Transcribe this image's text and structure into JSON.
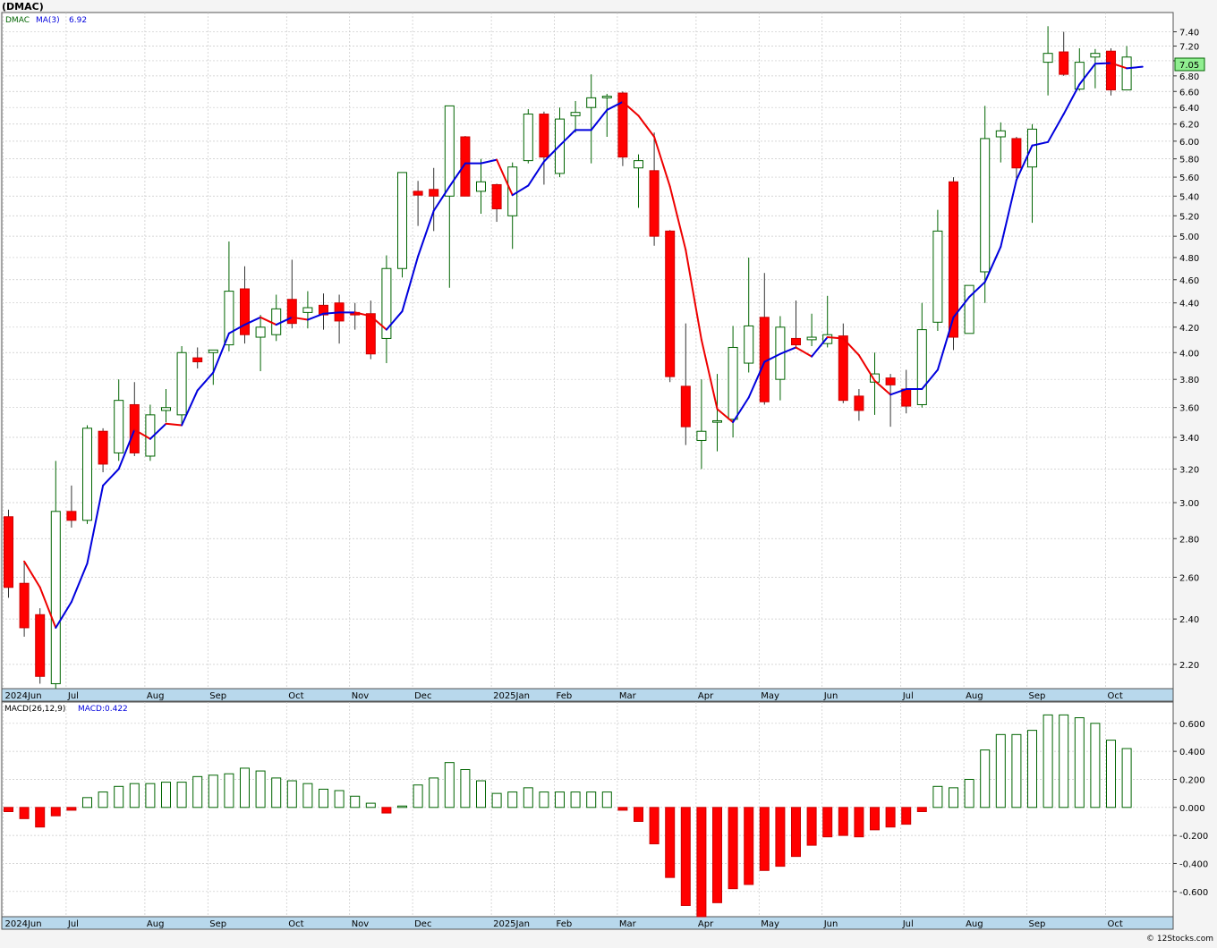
{
  "header": {
    "title": "(DMAC)"
  },
  "price_panel": {
    "legend_symbol": "DMAC",
    "legend_ma_label": "MA(3)",
    "legend_ma_value": "6.92",
    "last_price_label": "7.05"
  },
  "macd_panel": {
    "legend_label": "MACD(26,12,9)",
    "legend_value": "MACD:0.422"
  },
  "footer": {
    "credit": "© 12Stocks.com"
  },
  "colors": {
    "up_candle": "#ffffff",
    "up_border": "#006400",
    "down_candle": "#ff0000",
    "ma_up": "#0000dd",
    "ma_down": "#ee0000",
    "macd_pos": "#006400",
    "macd_neg": "#ff0000",
    "axis_band": "#b8d8ec",
    "grid": "#c8c8c8"
  },
  "chart_data": [
    {
      "type": "candlestick",
      "title": "(DMAC)",
      "scale": "log",
      "ylim": [
        2.1,
        7.6
      ],
      "y_ticks": [
        "2.20",
        "2.40",
        "2.60",
        "2.80",
        "3.00",
        "3.20",
        "3.40",
        "3.60",
        "3.80",
        "4.00",
        "4.20",
        "4.40",
        "4.60",
        "4.80",
        "5.00",
        "5.20",
        "5.40",
        "5.60",
        "5.80",
        "6.00",
        "6.20",
        "6.40",
        "6.60",
        "6.80",
        "7.00",
        "7.20",
        "7.40"
      ],
      "x_labels": [
        {
          "label": "2024Jun",
          "week": 0
        },
        {
          "label": "Jul",
          "week": 4
        },
        {
          "label": "Aug",
          "week": 9
        },
        {
          "label": "Sep",
          "week": 13
        },
        {
          "label": "Oct",
          "week": 18
        },
        {
          "label": "Nov",
          "week": 22
        },
        {
          "label": "Dec",
          "week": 26
        },
        {
          "label": "2025Jan",
          "week": 31
        },
        {
          "label": "Feb",
          "week": 35
        },
        {
          "label": "Mar",
          "week": 39
        },
        {
          "label": "Apr",
          "week": 44
        },
        {
          "label": "May",
          "week": 48
        },
        {
          "label": "Jun",
          "week": 52
        },
        {
          "label": "Jul",
          "week": 57
        },
        {
          "label": "Aug",
          "week": 61
        },
        {
          "label": "Sep",
          "week": 65
        },
        {
          "label": "Oct",
          "week": 70
        }
      ],
      "candles": [
        {
          "o": 2.92,
          "h": 2.96,
          "l": 2.5,
          "c": 2.55
        },
        {
          "o": 2.57,
          "h": 2.68,
          "l": 2.32,
          "c": 2.36
        },
        {
          "o": 2.42,
          "h": 2.45,
          "l": 2.12,
          "c": 2.15
        },
        {
          "o": 2.12,
          "h": 3.25,
          "l": 2.08,
          "c": 2.95
        },
        {
          "o": 2.95,
          "h": 3.1,
          "l": 2.86,
          "c": 2.9
        },
        {
          "o": 2.9,
          "h": 3.48,
          "l": 2.88,
          "c": 3.46
        },
        {
          "o": 3.44,
          "h": 3.46,
          "l": 3.18,
          "c": 3.23
        },
        {
          "o": 3.3,
          "h": 3.8,
          "l": 3.25,
          "c": 3.65
        },
        {
          "o": 3.62,
          "h": 3.78,
          "l": 3.28,
          "c": 3.3
        },
        {
          "o": 3.28,
          "h": 3.62,
          "l": 3.25,
          "c": 3.55
        },
        {
          "o": 3.58,
          "h": 3.73,
          "l": 3.5,
          "c": 3.6
        },
        {
          "o": 3.55,
          "h": 4.05,
          "l": 3.48,
          "c": 4.0
        },
        {
          "o": 3.96,
          "h": 4.04,
          "l": 3.88,
          "c": 3.93
        },
        {
          "o": 4.0,
          "h": 4.02,
          "l": 3.76,
          "c": 4.02
        },
        {
          "o": 4.06,
          "h": 4.95,
          "l": 4.01,
          "c": 4.5
        },
        {
          "o": 4.52,
          "h": 4.72,
          "l": 4.07,
          "c": 4.14
        },
        {
          "o": 4.12,
          "h": 4.3,
          "l": 3.86,
          "c": 4.2
        },
        {
          "o": 4.14,
          "h": 4.47,
          "l": 4.09,
          "c": 4.35
        },
        {
          "o": 4.43,
          "h": 4.78,
          "l": 4.19,
          "c": 4.23
        },
        {
          "o": 4.32,
          "h": 4.5,
          "l": 4.19,
          "c": 4.36
        },
        {
          "o": 4.38,
          "h": 4.48,
          "l": 4.18,
          "c": 4.3
        },
        {
          "o": 4.4,
          "h": 4.47,
          "l": 4.07,
          "c": 4.25
        },
        {
          "o": 4.32,
          "h": 4.4,
          "l": 4.18,
          "c": 4.3
        },
        {
          "o": 4.31,
          "h": 4.42,
          "l": 3.95,
          "c": 3.99
        },
        {
          "o": 4.11,
          "h": 4.82,
          "l": 3.92,
          "c": 4.7
        },
        {
          "o": 4.7,
          "h": 5.65,
          "l": 4.62,
          "c": 5.65
        },
        {
          "o": 5.45,
          "h": 5.56,
          "l": 5.1,
          "c": 5.41
        },
        {
          "o": 5.47,
          "h": 5.7,
          "l": 5.05,
          "c": 5.4
        },
        {
          "o": 5.4,
          "h": 6.42,
          "l": 4.53,
          "c": 6.42
        },
        {
          "o": 6.05,
          "h": 6.06,
          "l": 5.4,
          "c": 5.4
        },
        {
          "o": 5.45,
          "h": 5.8,
          "l": 5.22,
          "c": 5.55
        },
        {
          "o": 5.52,
          "h": 5.53,
          "l": 5.14,
          "c": 5.27
        },
        {
          "o": 5.2,
          "h": 5.76,
          "l": 4.88,
          "c": 5.71
        },
        {
          "o": 5.78,
          "h": 6.38,
          "l": 5.75,
          "c": 6.32
        },
        {
          "o": 6.32,
          "h": 6.35,
          "l": 5.52,
          "c": 5.82
        },
        {
          "o": 5.64,
          "h": 6.4,
          "l": 5.6,
          "c": 6.26
        },
        {
          "o": 6.3,
          "h": 6.48,
          "l": 6.1,
          "c": 6.34
        },
        {
          "o": 6.4,
          "h": 6.82,
          "l": 5.75,
          "c": 6.52
        },
        {
          "o": 6.52,
          "h": 6.57,
          "l": 6.05,
          "c": 6.54
        },
        {
          "o": 6.58,
          "h": 6.6,
          "l": 5.72,
          "c": 5.82
        },
        {
          "o": 5.7,
          "h": 5.85,
          "l": 5.28,
          "c": 5.78
        },
        {
          "o": 5.67,
          "h": 6.1,
          "l": 4.91,
          "c": 5.0
        },
        {
          "o": 5.05,
          "h": 5.06,
          "l": 3.78,
          "c": 3.82
        },
        {
          "o": 3.75,
          "h": 4.23,
          "l": 3.35,
          "c": 3.47
        },
        {
          "o": 3.38,
          "h": 3.8,
          "l": 3.2,
          "c": 3.44
        },
        {
          "o": 3.5,
          "h": 3.84,
          "l": 3.31,
          "c": 3.51
        },
        {
          "o": 3.52,
          "h": 4.21,
          "l": 3.4,
          "c": 4.04
        },
        {
          "o": 3.92,
          "h": 4.8,
          "l": 3.85,
          "c": 4.21
        },
        {
          "o": 4.28,
          "h": 4.66,
          "l": 3.62,
          "c": 3.64
        },
        {
          "o": 3.8,
          "h": 4.29,
          "l": 3.65,
          "c": 4.2
        },
        {
          "o": 4.11,
          "h": 4.42,
          "l": 4.03,
          "c": 4.06
        },
        {
          "o": 4.1,
          "h": 4.31,
          "l": 4.05,
          "c": 4.12
        },
        {
          "o": 4.07,
          "h": 4.46,
          "l": 4.04,
          "c": 4.14
        },
        {
          "o": 4.13,
          "h": 4.23,
          "l": 3.63,
          "c": 3.65
        },
        {
          "o": 3.68,
          "h": 3.73,
          "l": 3.51,
          "c": 3.58
        },
        {
          "o": 3.78,
          "h": 4.0,
          "l": 3.55,
          "c": 3.84
        },
        {
          "o": 3.81,
          "h": 3.84,
          "l": 3.47,
          "c": 3.76
        },
        {
          "o": 3.73,
          "h": 3.87,
          "l": 3.56,
          "c": 3.61
        },
        {
          "o": 3.62,
          "h": 4.4,
          "l": 3.6,
          "c": 4.18
        },
        {
          "o": 4.24,
          "h": 5.26,
          "l": 4.17,
          "c": 5.05
        },
        {
          "o": 5.55,
          "h": 5.6,
          "l": 4.02,
          "c": 4.12
        },
        {
          "o": 4.15,
          "h": 4.55,
          "l": 4.15,
          "c": 4.55
        },
        {
          "o": 4.67,
          "h": 6.42,
          "l": 4.4,
          "c": 6.03
        },
        {
          "o": 6.05,
          "h": 6.22,
          "l": 5.76,
          "c": 6.12
        },
        {
          "o": 6.03,
          "h": 6.05,
          "l": 5.59,
          "c": 5.7
        },
        {
          "o": 5.71,
          "h": 6.2,
          "l": 5.13,
          "c": 6.14
        },
        {
          "o": 6.98,
          "h": 7.48,
          "l": 6.55,
          "c": 7.1
        },
        {
          "o": 7.12,
          "h": 7.4,
          "l": 6.8,
          "c": 6.82
        },
        {
          "o": 6.63,
          "h": 7.17,
          "l": 6.61,
          "c": 6.98
        },
        {
          "o": 7.05,
          "h": 7.16,
          "l": 6.64,
          "c": 7.1
        },
        {
          "o": 7.13,
          "h": 7.17,
          "l": 6.55,
          "c": 6.62
        },
        {
          "o": 6.62,
          "h": 7.2,
          "l": 6.63,
          "c": 7.05
        }
      ],
      "ma3": [
        2.68,
        2.55,
        2.36,
        2.48,
        2.67,
        3.1,
        3.2,
        3.45,
        3.39,
        3.49,
        3.48,
        3.72,
        3.85,
        4.15,
        4.22,
        4.28,
        4.22,
        4.28,
        4.26,
        4.31,
        4.32,
        4.32,
        4.29,
        4.18,
        4.33,
        4.81,
        5.25,
        5.5,
        5.75,
        5.75,
        5.79,
        5.41,
        5.51,
        5.77,
        5.95,
        6.13,
        6.13,
        6.37,
        6.47,
        6.3,
        6.05,
        5.5,
        4.87,
        4.1,
        3.59,
        3.5,
        3.67,
        3.93,
        3.99,
        4.04,
        3.97,
        4.12,
        4.11,
        3.98,
        3.79,
        3.69,
        3.73,
        3.73,
        3.87,
        4.28,
        4.45,
        4.58,
        4.9,
        5.57,
        5.95,
        5.99,
        6.32,
        6.69,
        6.96,
        6.97,
        6.9,
        6.92
      ]
    },
    {
      "type": "bar",
      "title": "MACD(26,12,9)",
      "ylim": [
        -0.78,
        0.72
      ],
      "y_ticks": [
        "0.600",
        "0.400",
        "0.200",
        "0.000",
        "-0.200",
        "-0.400",
        "-0.600"
      ],
      "values": [
        -0.03,
        -0.08,
        -0.14,
        -0.06,
        -0.02,
        0.07,
        0.11,
        0.15,
        0.17,
        0.17,
        0.18,
        0.18,
        0.22,
        0.23,
        0.24,
        0.28,
        0.26,
        0.21,
        0.19,
        0.17,
        0.13,
        0.12,
        0.08,
        0.03,
        -0.04,
        0.01,
        0.16,
        0.21,
        0.32,
        0.27,
        0.19,
        0.1,
        0.11,
        0.14,
        0.11,
        0.11,
        0.11,
        0.11,
        0.11,
        -0.02,
        -0.1,
        -0.26,
        -0.5,
        -0.7,
        -0.78,
        -0.68,
        -0.58,
        -0.55,
        -0.45,
        -0.42,
        -0.35,
        -0.27,
        -0.21,
        -0.2,
        -0.21,
        -0.16,
        -0.14,
        -0.12,
        -0.03,
        0.15,
        0.14,
        0.2,
        0.41,
        0.52,
        0.52,
        0.55,
        0.66,
        0.66,
        0.64,
        0.6,
        0.48,
        0.42
      ]
    }
  ]
}
